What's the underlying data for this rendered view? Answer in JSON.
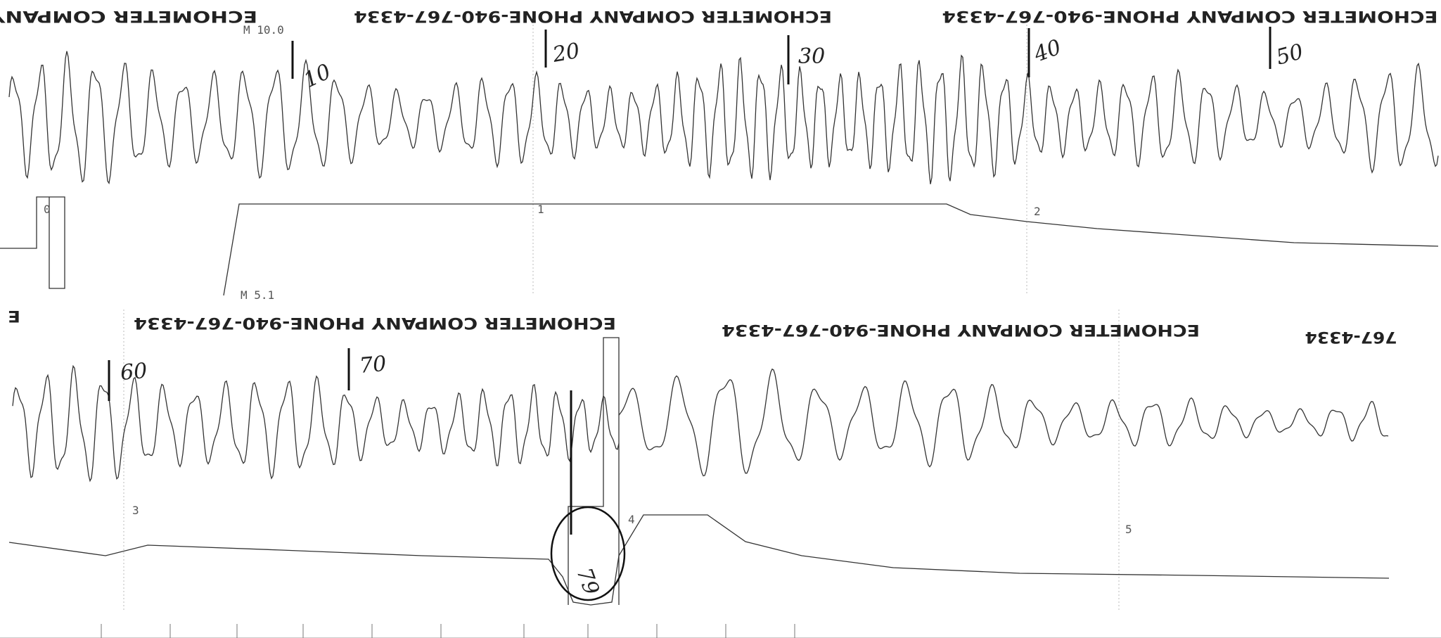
{
  "top_strip": {
    "headers": [
      "ECHOMETER COMPANY",
      "ECHOMETER COMPANY  PHONE-940-767-4334",
      "ECHOMETER COMPANY  PHONE-940-767-4334"
    ],
    "marker": "M 10.0",
    "joint_marks": [
      "10",
      "20",
      "30",
      "40",
      "50"
    ],
    "time_labels": [
      "0",
      "1",
      "2"
    ]
  },
  "bottom_strip": {
    "headers": [
      "E",
      "ECHOMETER COMPANY  PHONE-940-767-4334",
      "ECHOMETER COMPANY  PHONE-940-767-4334",
      "767-4334"
    ],
    "marker": "M 5.1",
    "joint_marks": [
      "60",
      "70",
      "79"
    ],
    "time_labels": [
      "3",
      "4",
      "5"
    ]
  }
}
